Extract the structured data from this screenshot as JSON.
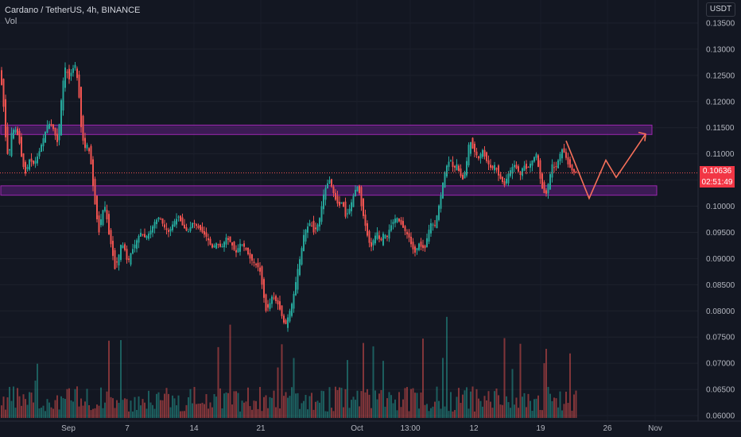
{
  "header": {
    "symbol_line": "Cardano / TetherUS, 4h, BINANCE",
    "indicator": "Vol"
  },
  "price_axis": {
    "currency_button": "USDT",
    "current_price": "0.10636",
    "countdown": "02:51:49"
  },
  "colors": {
    "background": "#131722",
    "up": "#26a69a",
    "down": "#ef5350",
    "zone_fill": "#4a1e66",
    "zone_border": "#9c27b0",
    "projection": "#f7705a"
  },
  "chart_data": {
    "type": "candlestick",
    "ylim": [
      0.06,
      0.136
    ],
    "yticks": [
      "0.13500",
      "0.13000",
      "0.12500",
      "0.12000",
      "0.11500",
      "0.11000",
      "0.10500",
      "0.10000",
      "0.09500",
      "0.09000",
      "0.08500",
      "0.08000",
      "0.07500",
      "0.07000",
      "0.06500",
      "0.06000"
    ],
    "xticks": [
      "Sep",
      "7",
      "14",
      "21",
      "Oct",
      "13:00",
      "12",
      "19",
      "26",
      "Nov"
    ],
    "path_points": [
      [
        0,
        0.126
      ],
      [
        3,
        0.124
      ],
      [
        6,
        0.119
      ],
      [
        9,
        0.112
      ],
      [
        12,
        0.109
      ],
      [
        16,
        0.114
      ],
      [
        20,
        0.115
      ],
      [
        25,
        0.113
      ],
      [
        30,
        0.108
      ],
      [
        34,
        0.106
      ],
      [
        38,
        0.109
      ],
      [
        44,
        0.108
      ],
      [
        50,
        0.11
      ],
      [
        56,
        0.113
      ],
      [
        62,
        0.116
      ],
      [
        68,
        0.115
      ],
      [
        74,
        0.112
      ],
      [
        80,
        0.123
      ],
      [
        84,
        0.127
      ],
      [
        88,
        0.124
      ],
      [
        92,
        0.126
      ],
      [
        96,
        0.127
      ],
      [
        100,
        0.123
      ],
      [
        104,
        0.114
      ],
      [
        108,
        0.111
      ],
      [
        112,
        0.112
      ],
      [
        116,
        0.108
      ],
      [
        119,
        0.103
      ],
      [
        122,
        0.099
      ],
      [
        126,
        0.095
      ],
      [
        130,
        0.099
      ],
      [
        134,
        0.1
      ],
      [
        138,
        0.095
      ],
      [
        142,
        0.092
      ],
      [
        146,
        0.088
      ],
      [
        150,
        0.09
      ],
      [
        154,
        0.093
      ],
      [
        158,
        0.092
      ],
      [
        162,
        0.089
      ],
      [
        166,
        0.091
      ],
      [
        172,
        0.093
      ],
      [
        178,
        0.095
      ],
      [
        184,
        0.094
      ],
      [
        190,
        0.095
      ],
      [
        196,
        0.097
      ],
      [
        202,
        0.098
      ],
      [
        208,
        0.096
      ],
      [
        214,
        0.095
      ],
      [
        220,
        0.097
      ],
      [
        226,
        0.098
      ],
      [
        232,
        0.096
      ],
      [
        238,
        0.095
      ],
      [
        244,
        0.097
      ],
      [
        250,
        0.096
      ],
      [
        256,
        0.095
      ],
      [
        262,
        0.094
      ],
      [
        268,
        0.092
      ],
      [
        274,
        0.093
      ],
      [
        280,
        0.092
      ],
      [
        286,
        0.094
      ],
      [
        292,
        0.093
      ],
      [
        298,
        0.091
      ],
      [
        304,
        0.093
      ],
      [
        310,
        0.092
      ],
      [
        316,
        0.09
      ],
      [
        322,
        0.089
      ],
      [
        328,
        0.088
      ],
      [
        332,
        0.084
      ],
      [
        336,
        0.08
      ],
      [
        340,
        0.081
      ],
      [
        344,
        0.083
      ],
      [
        348,
        0.082
      ],
      [
        352,
        0.081
      ],
      [
        356,
        0.079
      ],
      [
        360,
        0.077
      ],
      [
        364,
        0.079
      ],
      [
        368,
        0.081
      ],
      [
        372,
        0.084
      ],
      [
        376,
        0.088
      ],
      [
        380,
        0.091
      ],
      [
        384,
        0.095
      ],
      [
        388,
        0.096
      ],
      [
        392,
        0.097
      ],
      [
        396,
        0.095
      ],
      [
        400,
        0.096
      ],
      [
        404,
        0.098
      ],
      [
        408,
        0.102
      ],
      [
        412,
        0.104
      ],
      [
        416,
        0.105
      ],
      [
        420,
        0.103
      ],
      [
        424,
        0.101
      ],
      [
        428,
        0.1
      ],
      [
        432,
        0.101
      ],
      [
        436,
        0.098
      ],
      [
        440,
        0.099
      ],
      [
        444,
        0.101
      ],
      [
        448,
        0.103
      ],
      [
        452,
        0.104
      ],
      [
        456,
        0.1
      ],
      [
        460,
        0.097
      ],
      [
        464,
        0.094
      ],
      [
        468,
        0.092
      ],
      [
        472,
        0.094
      ],
      [
        476,
        0.095
      ],
      [
        480,
        0.093
      ],
      [
        484,
        0.095
      ],
      [
        488,
        0.094
      ],
      [
        492,
        0.096
      ],
      [
        496,
        0.097
      ],
      [
        500,
        0.098
      ],
      [
        504,
        0.097
      ],
      [
        508,
        0.096
      ],
      [
        512,
        0.095
      ],
      [
        516,
        0.094
      ],
      [
        520,
        0.092
      ],
      [
        524,
        0.091
      ],
      [
        528,
        0.093
      ],
      [
        532,
        0.092
      ],
      [
        536,
        0.092
      ],
      [
        540,
        0.095
      ],
      [
        544,
        0.097
      ],
      [
        548,
        0.096
      ],
      [
        552,
        0.099
      ],
      [
        556,
        0.102
      ],
      [
        560,
        0.106
      ],
      [
        564,
        0.108
      ],
      [
        568,
        0.109
      ],
      [
        572,
        0.107
      ],
      [
        576,
        0.108
      ],
      [
        580,
        0.106
      ],
      [
        584,
        0.105
      ],
      [
        588,
        0.108
      ],
      [
        592,
        0.113
      ],
      [
        596,
        0.111
      ],
      [
        600,
        0.11
      ],
      [
        604,
        0.109
      ],
      [
        608,
        0.111
      ],
      [
        612,
        0.109
      ],
      [
        616,
        0.108
      ],
      [
        620,
        0.107
      ],
      [
        624,
        0.108
      ],
      [
        628,
        0.106
      ],
      [
        632,
        0.105
      ],
      [
        636,
        0.104
      ],
      [
        640,
        0.106
      ],
      [
        644,
        0.107
      ],
      [
        648,
        0.108
      ],
      [
        652,
        0.107
      ],
      [
        656,
        0.106
      ],
      [
        660,
        0.108
      ],
      [
        664,
        0.107
      ],
      [
        668,
        0.108
      ],
      [
        672,
        0.109
      ],
      [
        676,
        0.11
      ],
      [
        680,
        0.106
      ],
      [
        684,
        0.103
      ],
      [
        688,
        0.102
      ],
      [
        692,
        0.105
      ],
      [
        696,
        0.108
      ],
      [
        700,
        0.107
      ],
      [
        704,
        0.109
      ],
      [
        708,
        0.111
      ],
      [
        712,
        0.11
      ],
      [
        716,
        0.108
      ],
      [
        720,
        0.107
      ],
      [
        724,
        0.1064
      ]
    ],
    "zones": [
      {
        "y_top": 0.1155,
        "y_bottom": 0.1137,
        "x_start": 1,
        "x_end": 820
      },
      {
        "y_top": 0.1039,
        "y_bottom": 0.1021,
        "x_start": 1,
        "x_end": 826
      }
    ],
    "projection_points": [
      [
        712,
        0.1125
      ],
      [
        741,
        0.1015
      ],
      [
        762,
        0.1088
      ],
      [
        775,
        0.1055
      ],
      [
        812,
        0.1138
      ]
    ],
    "current_price": 0.10636
  }
}
